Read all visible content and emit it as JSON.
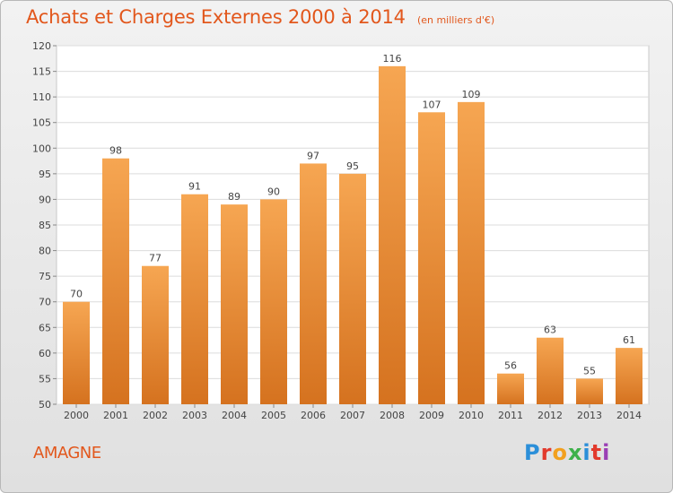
{
  "header": {
    "title": "Achats et Charges Externes 2000 à 2014",
    "subtitle": "(en milliers d'€)"
  },
  "footer": {
    "commune": "AMAGNE",
    "logo_text": "Proxiti"
  },
  "colors": {
    "bar_top": "#f6a652",
    "bar_bottom": "#d5721f",
    "accent": "#e2571c",
    "logo_letters": [
      "#2b8fd9",
      "#e23a2c",
      "#f2a01e",
      "#3db14a",
      "#2b8fd9",
      "#e23a2c",
      "#9b3fb5"
    ]
  },
  "chart_data": {
    "type": "bar",
    "categories": [
      "2000",
      "2001",
      "2002",
      "2003",
      "2004",
      "2005",
      "2006",
      "2007",
      "2008",
      "2009",
      "2010",
      "2011",
      "2012",
      "2013",
      "2014"
    ],
    "values": [
      70,
      98,
      77,
      91,
      89,
      90,
      97,
      95,
      116,
      107,
      109,
      56,
      63,
      55,
      61
    ],
    "title": "Achats et Charges Externes 2000 à 2014",
    "xlabel": "",
    "ylabel": "",
    "ylim": [
      50,
      120
    ],
    "yticks": [
      50,
      55,
      60,
      65,
      70,
      75,
      80,
      85,
      90,
      95,
      100,
      105,
      110,
      115,
      120
    ],
    "grid": true,
    "legend": "none"
  }
}
